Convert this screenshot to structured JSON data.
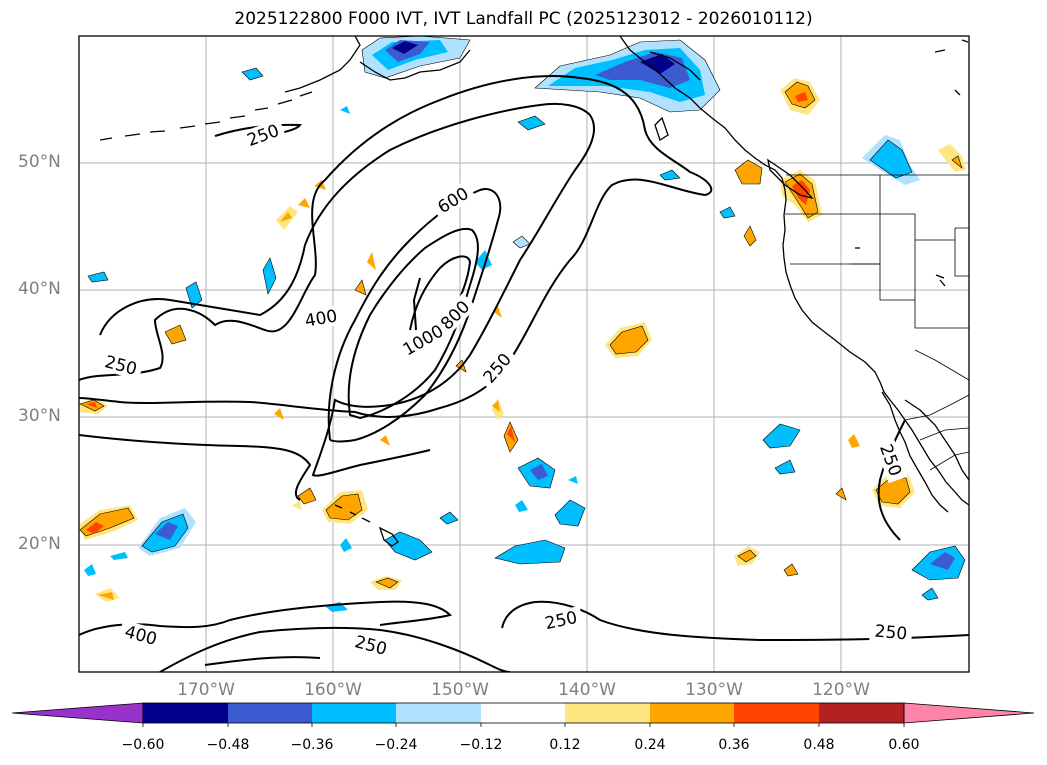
{
  "title": "2025122800 F000 IVT, IVT Landfall PC (2025123012 - 2026010112)",
  "map": {
    "lat_labels": [
      "50°N",
      "40°N",
      "30°N",
      "20°N"
    ],
    "lon_labels": [
      "170°W",
      "160°W",
      "150°W",
      "140°W",
      "130°W",
      "120°W"
    ],
    "lon_range": [
      -180,
      -110
    ],
    "lat_range": [
      10,
      60
    ],
    "grid": true
  },
  "contour_labels": [
    "250",
    "600",
    "400",
    "800",
    "1000",
    "250",
    "250",
    "250",
    "400",
    "250",
    "250",
    "250"
  ],
  "colorbar": {
    "extend": "both",
    "ticks": [
      "−0.60",
      "−0.48",
      "−0.36",
      "−0.24",
      "−0.12",
      "0.12",
      "0.24",
      "0.36",
      "0.48",
      "0.60"
    ],
    "colors": [
      "#9932cc",
      "#00008b",
      "#3b5bd1",
      "#00bfff",
      "#b0e2ff",
      "#ffffff",
      "#ffe680",
      "#ffa500",
      "#ff4500",
      "#b22222",
      "#ff85a8"
    ]
  }
}
